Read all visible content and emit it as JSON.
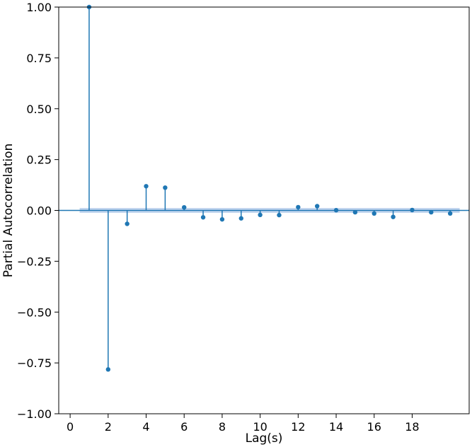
{
  "chart_data": {
    "type": "stem",
    "title": "",
    "xlabel": "Lag(s)",
    "ylabel": "Partial Autocorrelation",
    "xlim": [
      -0.6,
      21.0
    ],
    "ylim": [
      -1.0,
      1.0
    ],
    "xticks": [
      0,
      2,
      4,
      6,
      8,
      10,
      12,
      14,
      16,
      18
    ],
    "xtick_labels": [
      "0",
      "2",
      "4",
      "6",
      "8",
      "10",
      "12",
      "14",
      "16",
      "18"
    ],
    "yticks": [
      -1.0,
      -0.75,
      -0.5,
      -0.25,
      0.0,
      0.25,
      0.5,
      0.75,
      1.0
    ],
    "ytick_labels": [
      "−1.00",
      "−0.75",
      "−0.50",
      "−0.25",
      "0.00",
      "0.25",
      "0.50",
      "0.75",
      "1.00"
    ],
    "grid": false,
    "color": "#1f77b4",
    "confidence_band": {
      "x_range": [
        0.5,
        20.5
      ],
      "lower": -0.012,
      "upper": 0.012,
      "color": "#aec7e8"
    },
    "lags": [
      1,
      2,
      3,
      4,
      5,
      6,
      7,
      8,
      9,
      10,
      11,
      12,
      13,
      14,
      15,
      16,
      17,
      18,
      19,
      20
    ],
    "values": [
      1.0,
      -0.782,
      -0.066,
      0.119,
      0.112,
      0.015,
      -0.034,
      -0.044,
      -0.039,
      -0.022,
      -0.023,
      0.016,
      0.021,
      0.001,
      -0.009,
      -0.015,
      -0.032,
      0.002,
      -0.009,
      -0.015
    ]
  }
}
